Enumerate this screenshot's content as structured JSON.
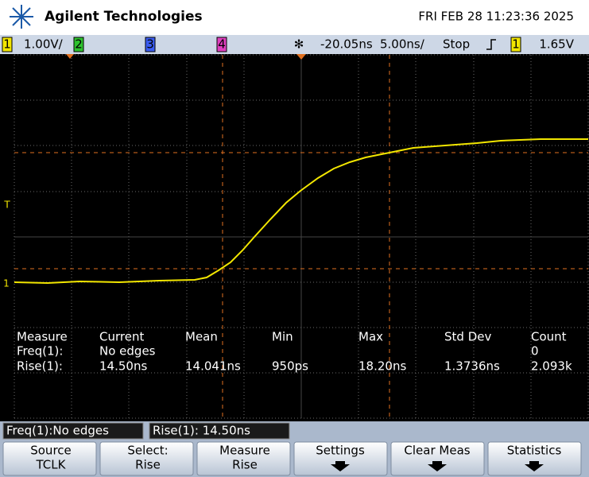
{
  "header": {
    "brand": "Agilent Technologies",
    "datetime": "FRI FEB 28 11:23:36 2025"
  },
  "status": {
    "ch1": "1",
    "ch1_scale": "1.00V/",
    "ch2": "2",
    "ch3": "3",
    "ch4": "4",
    "delay": "-20.05ns",
    "timebase": "5.00ns/",
    "run_state": "Stop",
    "trig_source": "1",
    "trig_level": "1.65V"
  },
  "measurements": {
    "headers": [
      "Measure",
      "Current",
      "Mean",
      "Min",
      "Max",
      "Std Dev",
      "Count"
    ],
    "freq": {
      "label": "Freq(1):",
      "current": "No edges",
      "count": "0"
    },
    "rise": [
      "Rise(1):",
      "14.50ns",
      "14.041ns",
      "950ps",
      "18.20ns",
      "1.3736ns",
      "2.093k"
    ]
  },
  "readouts": [
    "Freq(1):No edges",
    "Rise(1): 14.50ns"
  ],
  "softkeys": [
    {
      "title": "Source",
      "value": "TCLK"
    },
    {
      "title": "Select:",
      "value": "Rise"
    },
    {
      "title": "Measure",
      "value": "Rise"
    },
    {
      "title": "Settings"
    },
    {
      "title": "Clear Meas"
    },
    {
      "title": "Statistics"
    }
  ]
}
